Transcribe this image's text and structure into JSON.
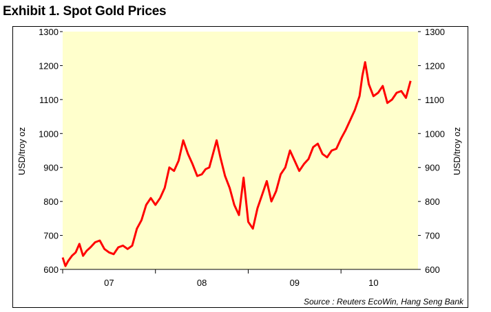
{
  "title": "Exhibit 1.  Spot Gold Prices",
  "source": "Source : Reuters EcoWin, Hang Seng Bank",
  "colors": {
    "plot_background": "#ffffcc",
    "line": "#ff0000",
    "axis": "#000000"
  },
  "chart_data": {
    "type": "line",
    "title": "Exhibit 1.  Spot Gold Prices",
    "ylabel": "USD/troy oz",
    "ylabel_right": "USD/troy oz",
    "ylim": [
      600,
      1300
    ],
    "yticks": [
      600,
      700,
      800,
      900,
      1000,
      1100,
      1200,
      1300
    ],
    "ytick_labels": [
      "600",
      "700",
      "800",
      "900",
      "1000",
      "1100",
      "1200",
      "1300"
    ],
    "xlim": [
      2006.5,
      2010.33
    ],
    "xtick_labels": [
      {
        "label": "07",
        "x": 2007.0
      },
      {
        "label": "08",
        "x": 2008.0
      },
      {
        "label": "09",
        "x": 2009.0
      },
      {
        "label": "10",
        "x": 2009.85
      }
    ],
    "year_boundaries": [
      2006.5,
      2007.5,
      2008.5,
      2009.5
    ],
    "grid": false,
    "series": [
      {
        "color": "#ff0000",
        "x": [
          2006.5,
          2006.53,
          2006.56,
          2006.6,
          2006.64,
          2006.68,
          2006.72,
          2006.76,
          2006.8,
          2006.85,
          2006.9,
          2006.95,
          2007.0,
          2007.05,
          2007.1,
          2007.15,
          2007.2,
          2007.25,
          2007.3,
          2007.35,
          2007.4,
          2007.45,
          2007.5,
          2007.55,
          2007.6,
          2007.65,
          2007.7,
          2007.75,
          2007.8,
          2007.85,
          2007.9,
          2007.95,
          2008.0,
          2008.04,
          2008.08,
          2008.12,
          2008.16,
          2008.2,
          2008.25,
          2008.3,
          2008.35,
          2008.4,
          2008.45,
          2008.5,
          2008.55,
          2008.6,
          2008.65,
          2008.7,
          2008.75,
          2008.8,
          2008.85,
          2008.9,
          2008.95,
          2009.0,
          2009.05,
          2009.1,
          2009.15,
          2009.2,
          2009.25,
          2009.3,
          2009.35,
          2009.4,
          2009.45,
          2009.5,
          2009.55,
          2009.6,
          2009.65,
          2009.7,
          2009.73,
          2009.76,
          2009.8,
          2009.85,
          2009.9,
          2009.95,
          2010.0,
          2010.05,
          2010.1,
          2010.15,
          2010.2,
          2010.25
        ],
        "y": [
          635,
          610,
          625,
          640,
          650,
          675,
          640,
          655,
          665,
          680,
          685,
          660,
          650,
          645,
          665,
          670,
          660,
          670,
          720,
          745,
          790,
          810,
          790,
          810,
          840,
          900,
          890,
          920,
          980,
          940,
          910,
          875,
          880,
          895,
          900,
          940,
          980,
          930,
          875,
          840,
          790,
          760,
          870,
          740,
          720,
          780,
          820,
          860,
          800,
          830,
          880,
          900,
          950,
          920,
          890,
          910,
          925,
          960,
          970,
          940,
          930,
          950,
          955,
          985,
          1010,
          1040,
          1070,
          1110,
          1170,
          1210,
          1145,
          1110,
          1120,
          1140,
          1090,
          1100,
          1120,
          1125,
          1105,
          1155
        ]
      }
    ]
  }
}
